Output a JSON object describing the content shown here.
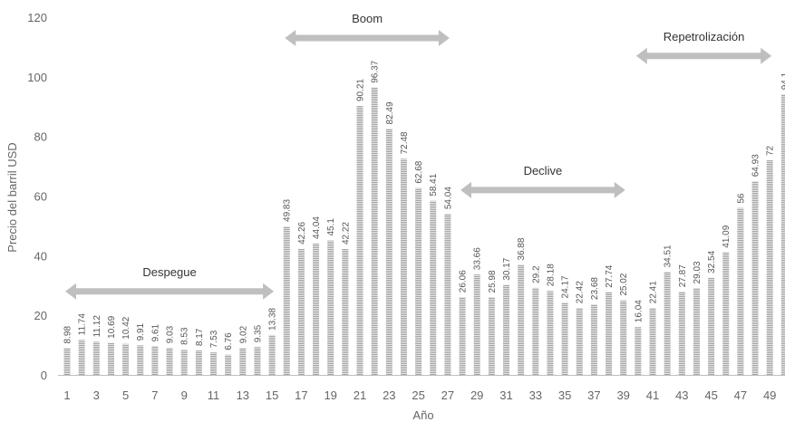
{
  "chart_data": {
    "type": "bar",
    "xlabel": "Año",
    "ylabel": "Precio del barril USD",
    "ylim": [
      0,
      120
    ],
    "yticks": [
      0,
      20,
      40,
      60,
      80,
      100,
      120
    ],
    "x": [
      1,
      2,
      3,
      4,
      5,
      6,
      7,
      8,
      9,
      10,
      11,
      12,
      13,
      14,
      15,
      16,
      17,
      18,
      19,
      20,
      21,
      22,
      23,
      24,
      25,
      26,
      27,
      28,
      29,
      30,
      31,
      32,
      33,
      34,
      35,
      36,
      37,
      38,
      39,
      40,
      41,
      42,
      43,
      44,
      45,
      46,
      47,
      48,
      49,
      50
    ],
    "xtick_labels": [
      "1",
      "3",
      "5",
      "7",
      "9",
      "11",
      "13",
      "15",
      "17",
      "19",
      "21",
      "23",
      "25",
      "27",
      "29",
      "31",
      "33",
      "35",
      "37",
      "39",
      "41",
      "43",
      "45",
      "47",
      "49"
    ],
    "values": [
      8.98,
      11.74,
      11.12,
      10.69,
      10.42,
      9.91,
      9.61,
      9.03,
      8.53,
      8.17,
      7.53,
      6.76,
      9.02,
      9.35,
      13.38,
      49.83,
      42.26,
      44.04,
      45.1,
      42.22,
      90.21,
      96.37,
      82.49,
      72.48,
      62.68,
      58.41,
      54.04,
      26.06,
      33.66,
      25.98,
      30.17,
      36.88,
      29.2,
      28.18,
      24.17,
      22.42,
      23.68,
      27.74,
      25.02,
      16.04,
      22.41,
      34.51,
      27.87,
      29.03,
      32.54,
      41.09,
      56,
      64.93,
      72,
      94.1
    ],
    "data_labels": [
      "8.98",
      "11.74",
      "11.12",
      "10.69",
      "10.42",
      "9.91",
      "9.61",
      "9.03",
      "8.53",
      "8.17",
      "7.53",
      "6.76",
      "9.02",
      "9.35",
      "13.38",
      "49.83",
      "42.26",
      "44.04",
      "45.1",
      "42.22",
      "90.21",
      "96.37",
      "82.49",
      "72.48",
      "62.68",
      "58.41",
      "54.04",
      "26.06",
      "33.66",
      "25.98",
      "30.17",
      "36.88",
      "29.2",
      "28.18",
      "24.17",
      "22.42",
      "23.68",
      "27.74",
      "25.02",
      "16.04",
      "22.41",
      "34.51",
      "27.87",
      "29.03",
      "32.54",
      "41.09",
      "56",
      "64.93",
      "72",
      "94.1"
    ],
    "grid": false,
    "colors": {
      "bar": "#a6a6a6",
      "bar_stripe": "#ffffff",
      "arrow": "#bfbfbf",
      "axis": "#bfbfbf"
    },
    "annotations": [
      {
        "text": "Despegue",
        "x_start": 1,
        "x_end": 15,
        "y": 28
      },
      {
        "text": "Boom",
        "x_start": 16,
        "x_end": 27,
        "y": 113
      },
      {
        "text": "Declive",
        "x_start": 28,
        "x_end": 39,
        "y": 62
      },
      {
        "text": "Repetrolización",
        "x_start": 40,
        "x_end": 49,
        "y": 107
      }
    ]
  }
}
